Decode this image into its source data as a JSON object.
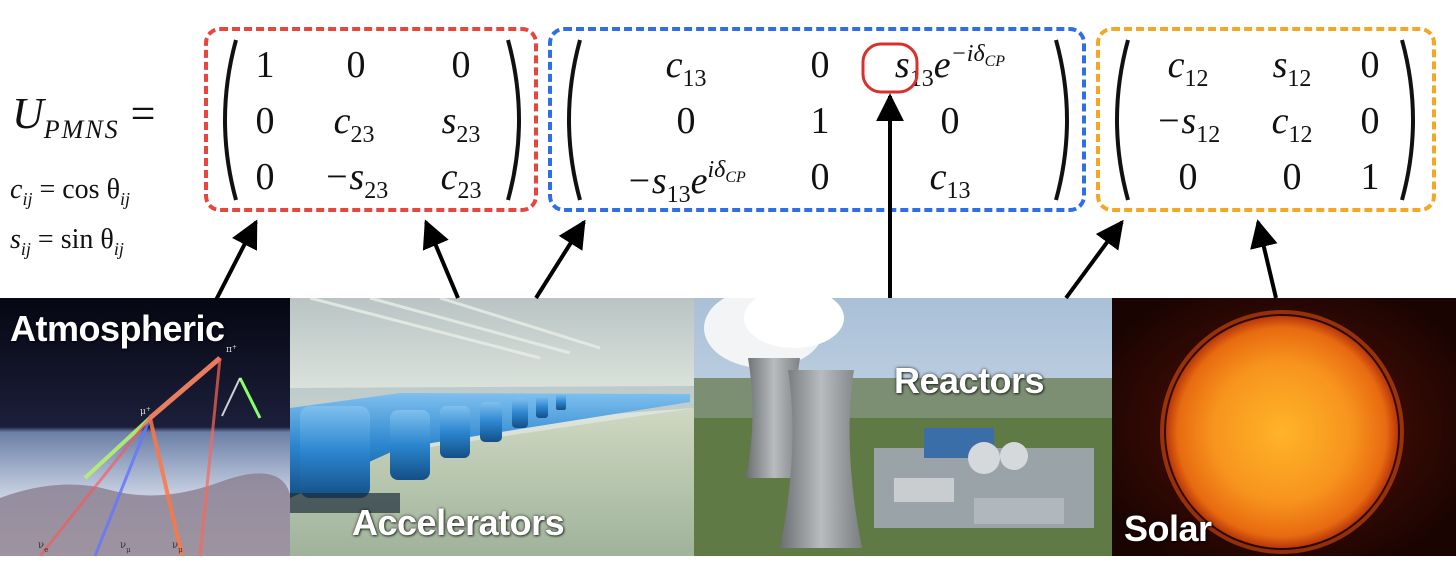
{
  "equation": {
    "lhs_symbol": "U",
    "lhs_subscript": "PMNS",
    "equals": "=",
    "cos_def": {
      "lhs": "c",
      "sub": "ij",
      "rhs": "= cos θ",
      "rhs_sub": "ij"
    },
    "sin_def": {
      "lhs": "s",
      "sub": "ij",
      "rhs": "= sin θ",
      "rhs_sub": "ij"
    }
  },
  "matrices": {
    "atmospheric": {
      "r0": [
        "1",
        "0",
        "0"
      ],
      "r1": [
        "0",
        "c",
        "s"
      ],
      "r2": [
        "0",
        "−s",
        "c"
      ],
      "subs": {
        "r1c1": "23",
        "r1c2": "23",
        "r2c1": "23",
        "r2c2": "23"
      },
      "box_color": "#e8453c"
    },
    "reactor": {
      "c13": "c",
      "sub13": "13",
      "zero": "0",
      "one": "1",
      "s13": "s",
      "exp_neg": "−iδ",
      "exp_pos": "iδ",
      "cp": "CP",
      "e": "e",
      "neg_s": "−s",
      "box_color": "#2f6ee8",
      "circle_color": "#d9302c"
    },
    "solar": {
      "r0": [
        "c",
        "s",
        "0"
      ],
      "r1": [
        "−s",
        "c",
        "0"
      ],
      "r2": [
        "0",
        "0",
        "1"
      ],
      "sub": "12",
      "box_color": "#f5a623"
    }
  },
  "sources": [
    {
      "label": "Atmospheric"
    },
    {
      "label": "Accelerators"
    },
    {
      "label": "Reactors"
    },
    {
      "label": "Solar"
    }
  ],
  "atmo_particles": [
    "ν",
    "e",
    "ν",
    "μ",
    "ν",
    "μ",
    "μ",
    "+",
    "π",
    "+"
  ]
}
